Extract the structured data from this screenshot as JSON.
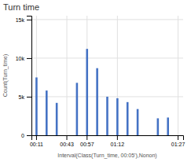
{
  "chart_data": {
    "type": "bar",
    "title": "Turn time",
    "x_label": "Interval(Class(Turn_time, 00:05'),Nonon)",
    "y_label": "Count(Turn_time)",
    "categories": [
      "00:11",
      null,
      null,
      "00:43",
      null,
      "00:57",
      null,
      null,
      "01:12",
      null,
      null,
      null,
      null,
      null,
      "01:27"
    ],
    "values": [
      7500,
      5800,
      4200,
      0,
      6800,
      11200,
      8700,
      5000,
      4800,
      4300,
      3400,
      0,
      2200,
      2300,
      0
    ],
    "color": "#4472c4",
    "ylim": [
      0,
      15500
    ],
    "yticks": [
      0,
      {
        "value": 5000,
        "label": "5k"
      },
      {
        "value": 10000,
        "label": "10k"
      },
      {
        "value": 15000,
        "label": "15k"
      }
    ],
    "grid": true
  }
}
